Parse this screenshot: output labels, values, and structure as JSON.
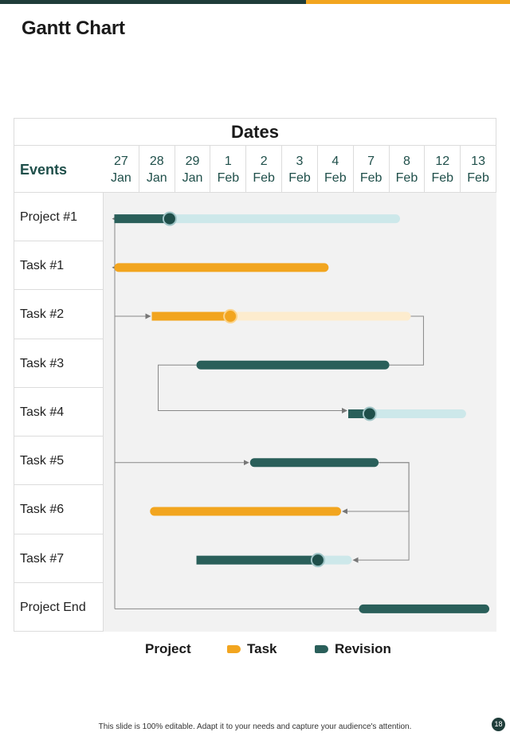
{
  "title": "Gantt Chart",
  "footer": "This slide is 100% editable. Adapt it to your needs and capture your audience's attention.",
  "page_number": "18",
  "colors": {
    "task": "#f2a51f",
    "task_light": "#fdecce",
    "revision": "#2a5f5a",
    "revision_light": "#cde8ea",
    "header_text": "#1f4f4a",
    "top_bar_dark": "#1f3d3a",
    "top_bar_gold": "#f2a51f"
  },
  "legend": [
    {
      "label": "Project",
      "color": ""
    },
    {
      "label": "Task",
      "color": "#f2a51f",
      "icon": "task-swatch"
    },
    {
      "label": "Revision",
      "color": "#2a5f5a",
      "icon": "revision-swatch"
    }
  ],
  "chart_data": {
    "type": "gantt",
    "title": "Gantt Chart",
    "dates_header": "Dates",
    "events_header": "Events",
    "dates": [
      {
        "day": "27",
        "month": "Jan"
      },
      {
        "day": "28",
        "month": "Jan"
      },
      {
        "day": "29",
        "month": "Jan"
      },
      {
        "day": "1",
        "month": "Feb"
      },
      {
        "day": "2",
        "month": "Feb"
      },
      {
        "day": "3",
        "month": "Feb"
      },
      {
        "day": "4",
        "month": "Feb"
      },
      {
        "day": "7",
        "month": "Feb"
      },
      {
        "day": "8",
        "month": "Feb"
      },
      {
        "day": "12",
        "month": "Feb"
      },
      {
        "day": "13",
        "month": "Feb"
      }
    ],
    "events": [
      {
        "name": "Project #1",
        "type": "revision",
        "start": 0.3,
        "progress_end": 1.85,
        "end": 8.3,
        "marker": true
      },
      {
        "name": "Task #1",
        "type": "task",
        "start": 0.3,
        "end": 6.3
      },
      {
        "name": "Task #2",
        "type": "task",
        "start": 1.35,
        "progress_end": 3.55,
        "end": 8.6,
        "marker": true
      },
      {
        "name": "Task #3",
        "type": "revision",
        "start": 2.6,
        "end": 8.0
      },
      {
        "name": "Task #4",
        "type": "revision",
        "start": 6.85,
        "progress_end": 7.45,
        "end": 10.15,
        "marker": true
      },
      {
        "name": "Task #5",
        "type": "revision",
        "start": 4.1,
        "end": 7.7
      },
      {
        "name": "Task #6",
        "type": "task",
        "start": 1.3,
        "end": 6.65
      },
      {
        "name": "Task #7",
        "type": "revision",
        "start": 2.6,
        "progress_end": 6.0,
        "end": 6.95,
        "marker": true
      },
      {
        "name": "Project End",
        "type": "revision",
        "start": 7.15,
        "end": 10.8
      }
    ],
    "dependencies": [
      {
        "from": "Project #1",
        "to": "Task #1"
      },
      {
        "from": "Project #1",
        "to": "Task #2"
      },
      {
        "from": "Task #2",
        "to": "Task #3"
      },
      {
        "from": "Task #3",
        "to": "Task #4"
      },
      {
        "from": "Project #1",
        "to": "Task #5"
      },
      {
        "from": "Task #5",
        "to": "Task #6"
      },
      {
        "from": "Task #5",
        "to": "Task #7"
      },
      {
        "from": "Project #1",
        "to": "Project End"
      }
    ]
  }
}
